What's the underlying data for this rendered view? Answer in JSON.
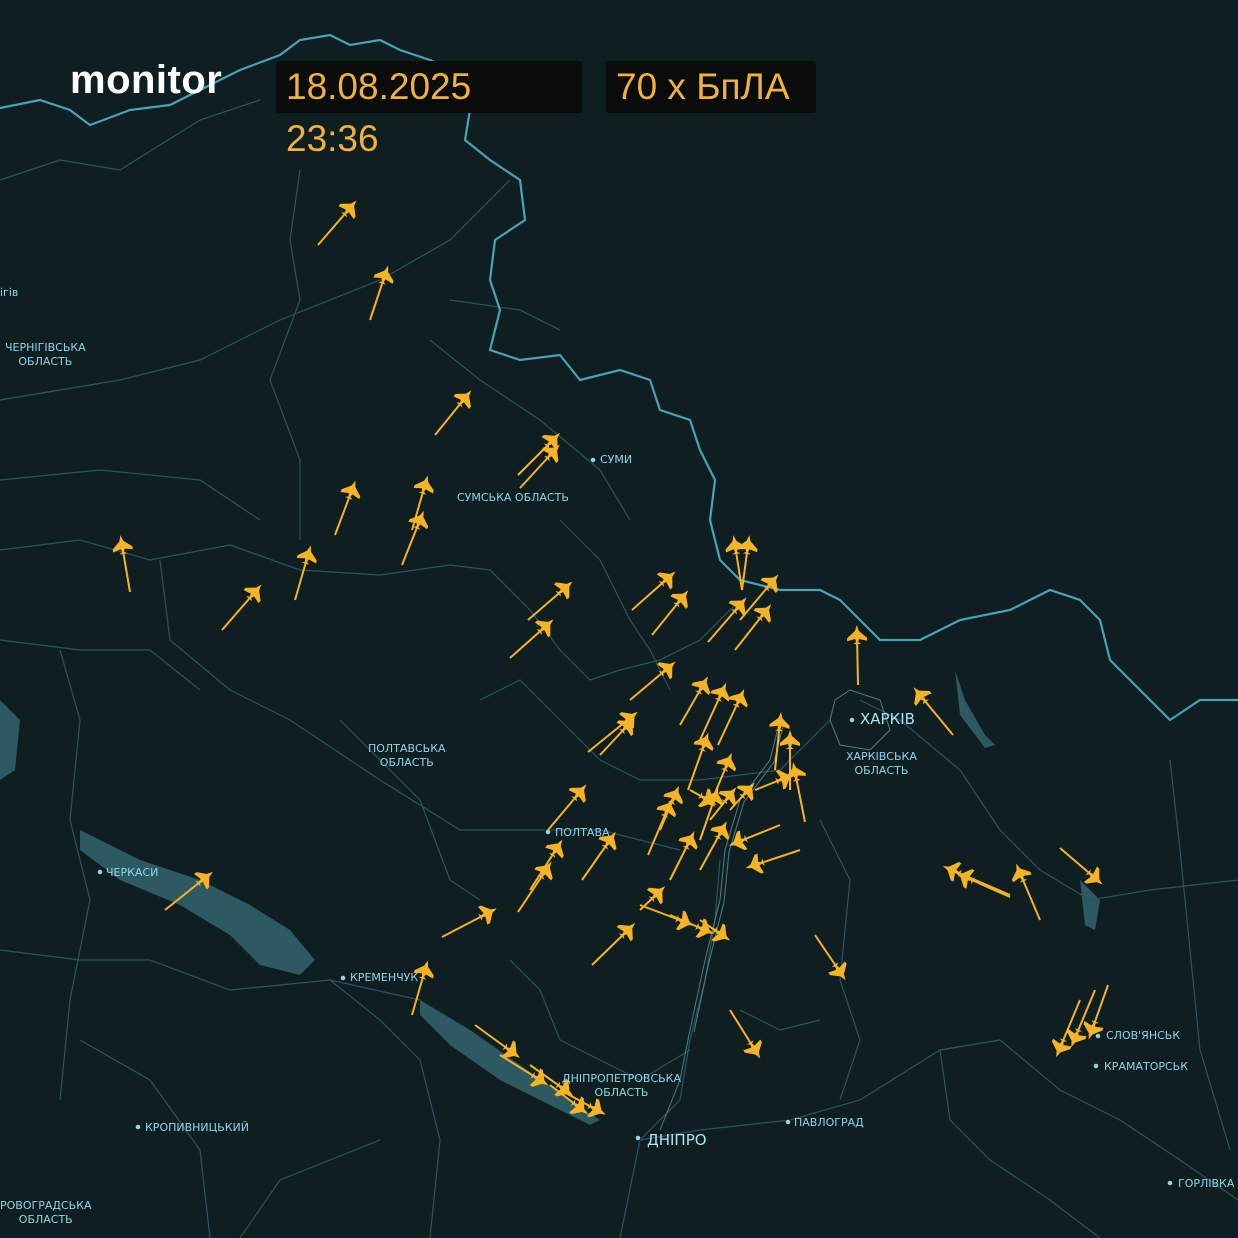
{
  "header": {
    "brand": "monitor",
    "datetime": "18.08.2025 23:36",
    "count": "70 x БпЛА"
  },
  "colors": {
    "background": "#0f1e21",
    "border": "#4aa3b5",
    "region_lines": "#2a5561",
    "water": "#2d5962",
    "drone": "#f5b325",
    "label": "#8fd6e8"
  },
  "icons": {
    "drone": "shahed-drone-icon",
    "city": "city-dot-icon"
  },
  "labels": {
    "chernihiv_partial": "ігів",
    "chernihiv_oblast": "ЧЕРНІГІВСЬКА\nОБЛАСТЬ",
    "sumy": "СУМИ",
    "sumy_oblast": "СУМСЬКА ОБЛАСТЬ",
    "kharkiv": "ХАРКІВ",
    "kharkiv_oblast": "ХАРКІВСЬКА\nОБЛАСТЬ",
    "poltava_oblast": "ПОЛТАВСЬКА\nОБЛАСТЬ",
    "poltava": "ПОЛТАВА",
    "cherkasy": "ЧЕРКАСИ",
    "kremenchuk": "КРЕМЕНЧУК",
    "dnipro_oblast": "ДНІПРОПЕТРОВСЬКА\nОБЛАСТЬ",
    "dnipro": "ДНІПРО",
    "pavlohrad": "ПАВЛОГРАД",
    "sloviansk": "СЛОВ'ЯНСЬК",
    "kramatorsk": "КРАМАТОРСЬК",
    "horlivka": "ГОРЛІВКА",
    "kropyvnytskyi": "КРОПИВНИЦЬКИЙ",
    "kirovohrad_oblast": "РОВОГРАДСЬКА\nОБЛАСТЬ"
  }
}
